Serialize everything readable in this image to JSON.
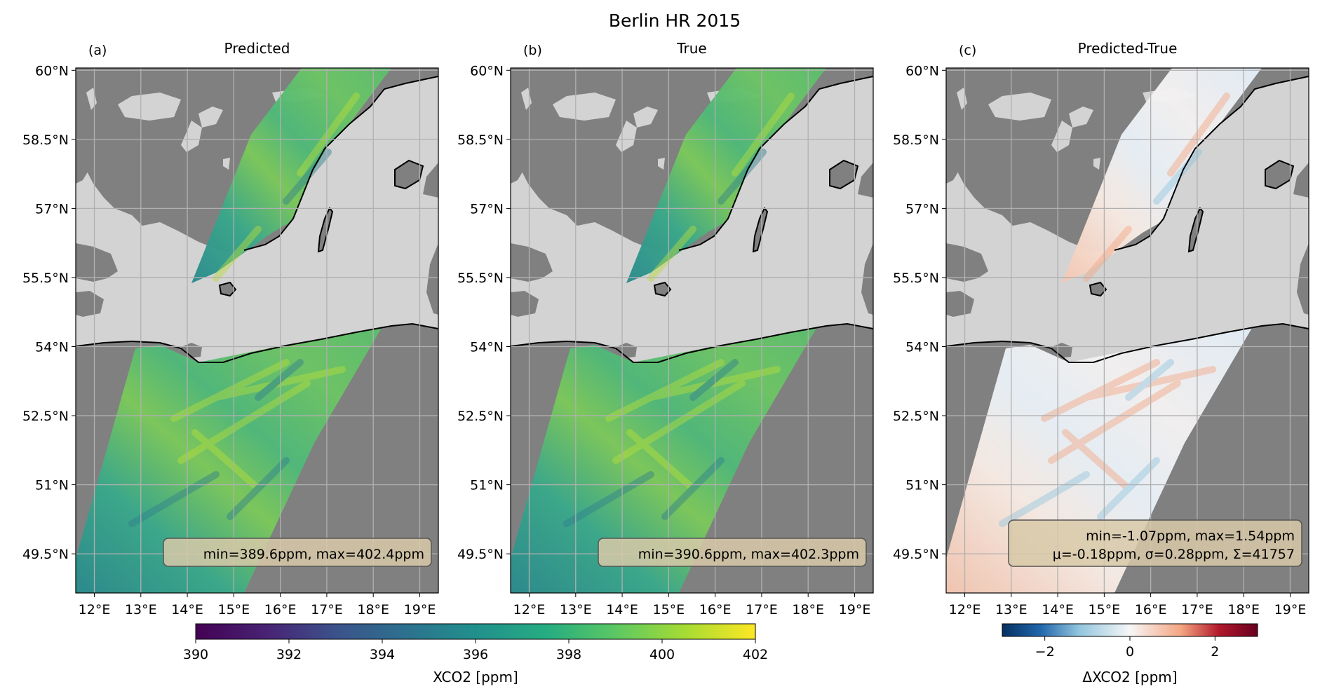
{
  "figure": {
    "title": "Berlin HR 2015"
  },
  "panels": [
    {
      "label": "(a)",
      "title": "Predicted",
      "stats": [
        "min=389.6ppm, max=402.4ppm"
      ]
    },
    {
      "label": "(b)",
      "title": "True",
      "stats": [
        "min=390.6ppm, max=402.3ppm"
      ]
    },
    {
      "label": "(c)",
      "title": "Predicted-True",
      "stats": [
        "min=-1.07ppm, max=1.54ppm",
        "μ=-0.18ppm, σ=0.28ppm, Σ=41757"
      ]
    }
  ],
  "colorbars": [
    {
      "label": "XCO2 [ppm]",
      "range": [
        390,
        402
      ],
      "ticks": [
        "390",
        "392",
        "394",
        "396",
        "398",
        "400",
        "402"
      ],
      "colormap": "viridis"
    },
    {
      "label": "ΔXCO2 [ppm]",
      "range": [
        -3,
        3
      ],
      "ticks": [
        "−2",
        "0",
        "2"
      ],
      "colormap": "RdBu_r"
    }
  ],
  "colors": {
    "ocean": "#d3d3d3",
    "land": "#808080",
    "grid": "#b0b0b0",
    "stats_box": "#d8c9a8"
  },
  "chart_data": [
    {
      "type": "heatmap",
      "title": "Predicted",
      "x_ticks": [
        "12°E",
        "13°E",
        "14°E",
        "15°E",
        "16°E",
        "17°E",
        "18°E",
        "19°E"
      ],
      "y_ticks": [
        "60°N",
        "58.5°N",
        "57°N",
        "55.5°N",
        "54°N",
        "52.5°N",
        "51°N",
        "49.5°N"
      ],
      "xlim": [
        11.6,
        19.4
      ],
      "ylim": [
        48.65,
        60.05
      ],
      "grid": true,
      "value_min": 389.6,
      "value_max": 402.4
    },
    {
      "type": "heatmap",
      "title": "True",
      "x_ticks": [
        "12°E",
        "13°E",
        "14°E",
        "15°E",
        "16°E",
        "17°E",
        "18°E",
        "19°E"
      ],
      "y_ticks": [
        "60°N",
        "58.5°N",
        "57°N",
        "55.5°N",
        "54°N",
        "52.5°N",
        "51°N",
        "49.5°N"
      ],
      "xlim": [
        11.6,
        19.4
      ],
      "ylim": [
        48.65,
        60.05
      ],
      "grid": true,
      "value_min": 390.6,
      "value_max": 402.3
    },
    {
      "type": "heatmap",
      "title": "Predicted-True",
      "x_ticks": [
        "12°E",
        "13°E",
        "14°E",
        "15°E",
        "16°E",
        "17°E",
        "18°E",
        "19°E"
      ],
      "y_ticks": [
        "60°N",
        "58.5°N",
        "57°N",
        "55.5°N",
        "54°N",
        "52.5°N",
        "51°N",
        "49.5°N"
      ],
      "xlim": [
        11.6,
        19.4
      ],
      "ylim": [
        48.65,
        60.05
      ],
      "grid": true,
      "value_min": -1.07,
      "value_max": 1.54,
      "mean": -0.18,
      "std": 0.28,
      "sum": 41757
    }
  ]
}
